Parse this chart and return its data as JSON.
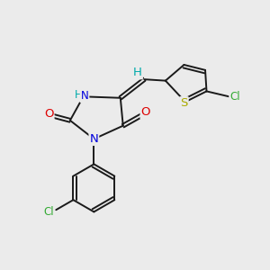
{
  "bg_color": "#ebebeb",
  "bond_color": "#1a1a1a",
  "bond_width": 1.4,
  "atom_colors": {
    "C": "#1a1a1a",
    "N": "#0000dd",
    "O": "#dd0000",
    "S": "#aaaa00",
    "Cl_green": "#33aa33",
    "H": "#00aaaa"
  },
  "font_size": 8.5,
  "fig_size": [
    3.0,
    3.0
  ],
  "dpi": 100
}
